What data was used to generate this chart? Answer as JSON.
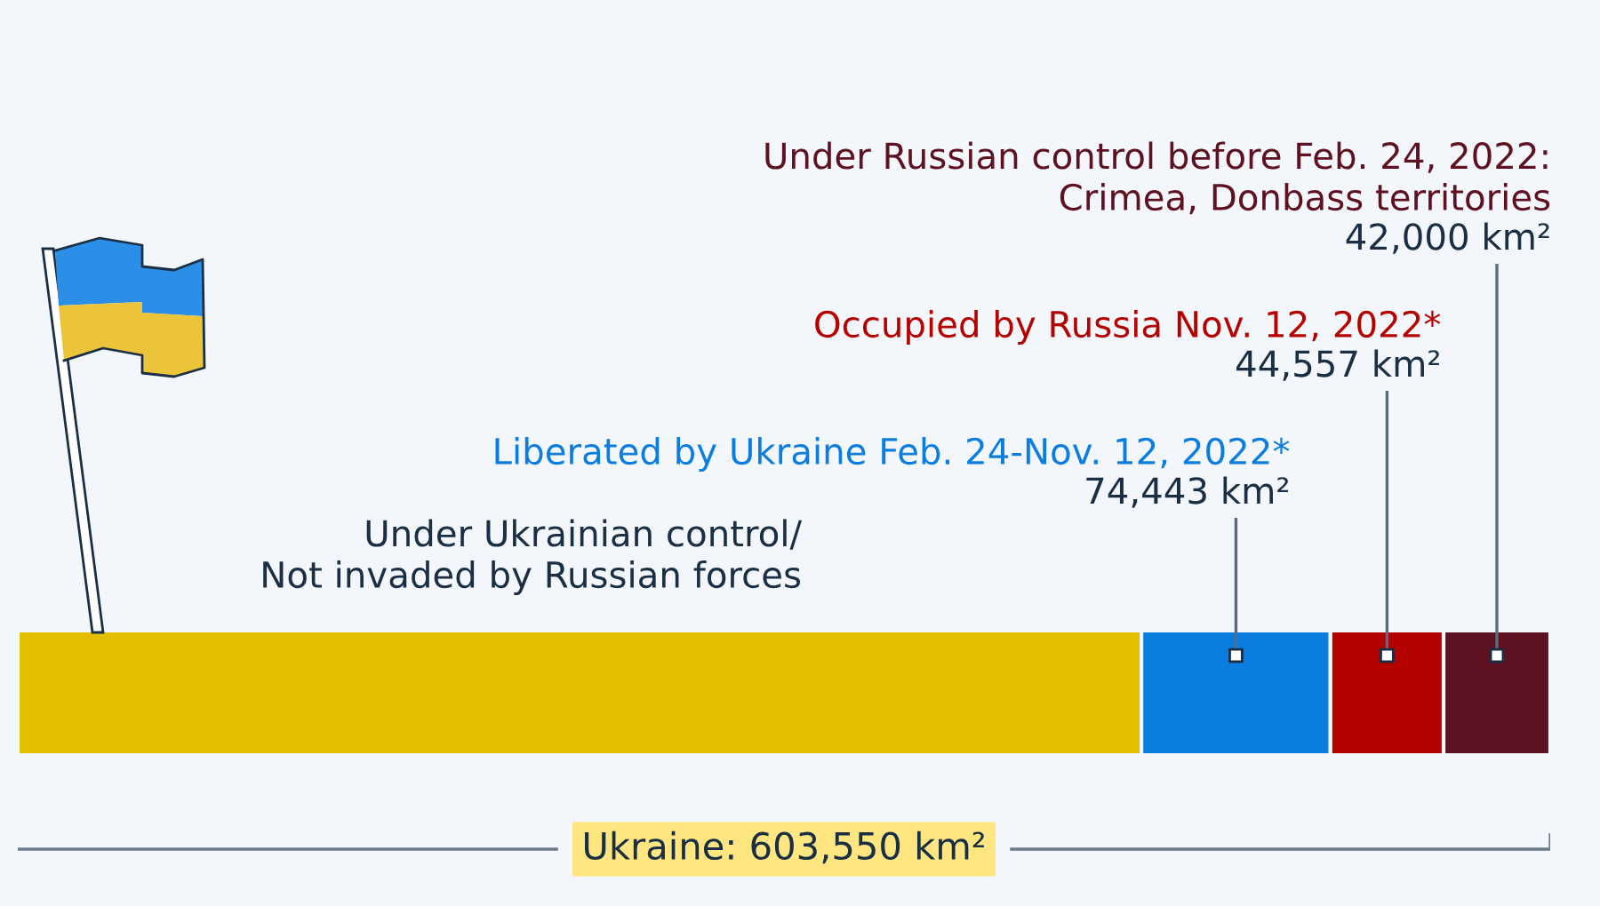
{
  "chart_data": {
    "type": "bar",
    "orientation": "horizontal",
    "stacked": true,
    "tick_labels": false,
    "categories": [
      null
    ],
    "series": [
      {
        "name": "Under Ukrainian control/\nNot invaded by Russian forces",
        "color": "#e2bd00",
        "values": [
          442550
        ]
      },
      {
        "name": "Liberated by Ukraine Feb. 24-Nov. 12, 2022*",
        "color": "#0b7ddf",
        "values": [
          74443
        ],
        "value_labels": [
          "74,443 km²"
        ]
      },
      {
        "name": "Occupied by Russia Nov. 12, 2022*",
        "color": "#b50000",
        "values": [
          44557
        ],
        "value_labels": [
          "44,557 km²"
        ]
      },
      {
        "name": "Under Russian control before Feb. 24, 2022:\nCrimea, Donbass territories",
        "color": "#5e1120",
        "values": [
          42000
        ],
        "value_labels": [
          "42,000 km²"
        ]
      }
    ],
    "totals": [
      "Ukraine: 603,550 km²"
    ]
  }
}
